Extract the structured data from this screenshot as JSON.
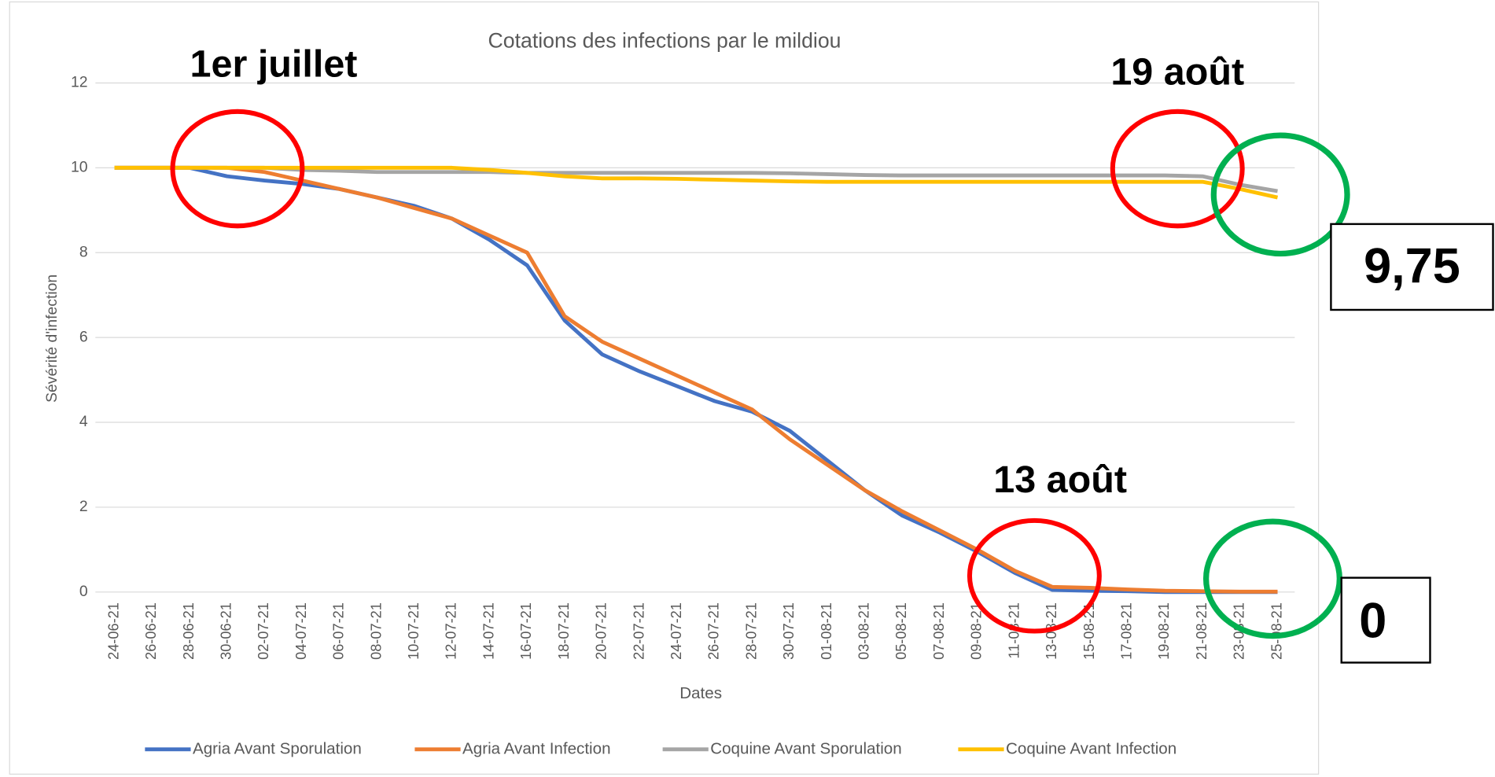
{
  "chart_data": {
    "type": "line",
    "title": "Cotations des infections par le mildiou",
    "y_label": "Sévérité d'infection",
    "x_label": "Dates",
    "categories": [
      "24-06-21",
      "26-06-21",
      "28-06-21",
      "30-06-21",
      "02-07-21",
      "04-07-21",
      "06-07-21",
      "08-07-21",
      "10-07-21",
      "12-07-21",
      "14-07-21",
      "16-07-21",
      "18-07-21",
      "20-07-21",
      "22-07-21",
      "24-07-21",
      "26-07-21",
      "28-07-21",
      "30-07-21",
      "01-08-21",
      "03-08-21",
      "05-08-21",
      "07-08-21",
      "09-08-21",
      "11-08-21",
      "13-08-21",
      "15-08-21",
      "17-08-21",
      "19-08-21",
      "21-08-21",
      "23-08-21",
      "25-08-21"
    ],
    "series": [
      {
        "name": "Agria Avant Sporulation",
        "color": "#4472c4",
        "values": [
          10,
          10,
          10,
          9.8,
          9.7,
          9.62,
          9.5,
          9.3,
          9.1,
          8.8,
          8.3,
          7.7,
          6.4,
          5.6,
          5.2,
          4.85,
          4.5,
          4.25,
          3.8,
          3.1,
          2.4,
          1.8,
          1.4,
          0.95,
          0.45,
          0.05,
          0.03,
          0.02,
          0,
          0,
          0,
          0
        ]
      },
      {
        "name": "Agria Avant Infection",
        "color": "#ed7d31",
        "values": [
          10,
          10,
          10,
          10,
          9.9,
          9.7,
          9.5,
          9.3,
          9.05,
          8.8,
          8.4,
          8.0,
          6.5,
          5.9,
          5.5,
          5.1,
          4.7,
          4.3,
          3.6,
          3.0,
          2.4,
          1.9,
          1.45,
          1.0,
          0.5,
          0.12,
          0.1,
          0.06,
          0.03,
          0.02,
          0.01,
          0.01
        ]
      },
      {
        "name": "Coquine Avant Sporulation",
        "color": "#a5a5a5",
        "values": [
          10,
          10,
          10,
          10,
          10,
          9.95,
          9.93,
          9.9,
          9.9,
          9.9,
          9.9,
          9.88,
          9.88,
          9.88,
          9.88,
          9.88,
          9.88,
          9.88,
          9.87,
          9.85,
          9.83,
          9.82,
          9.82,
          9.82,
          9.82,
          9.82,
          9.82,
          9.82,
          9.82,
          9.8,
          9.6,
          9.45
        ]
      },
      {
        "name": "Coquine Avant Infection",
        "color": "#ffc000",
        "values": [
          10,
          10,
          10,
          10,
          10,
          10,
          10,
          10,
          10,
          10,
          9.95,
          9.88,
          9.8,
          9.75,
          9.75,
          9.74,
          9.72,
          9.7,
          9.68,
          9.67,
          9.67,
          9.67,
          9.67,
          9.67,
          9.67,
          9.67,
          9.67,
          9.67,
          9.67,
          9.67,
          9.5,
          9.3
        ]
      }
    ],
    "ylim": [
      0,
      12
    ],
    "yticks": [
      0,
      2,
      4,
      6,
      8,
      10,
      12
    ],
    "grid": true,
    "legend": "bottom",
    "annotations": [
      "1er juillet",
      "19 août",
      "13 août",
      "9,75",
      "0"
    ]
  }
}
